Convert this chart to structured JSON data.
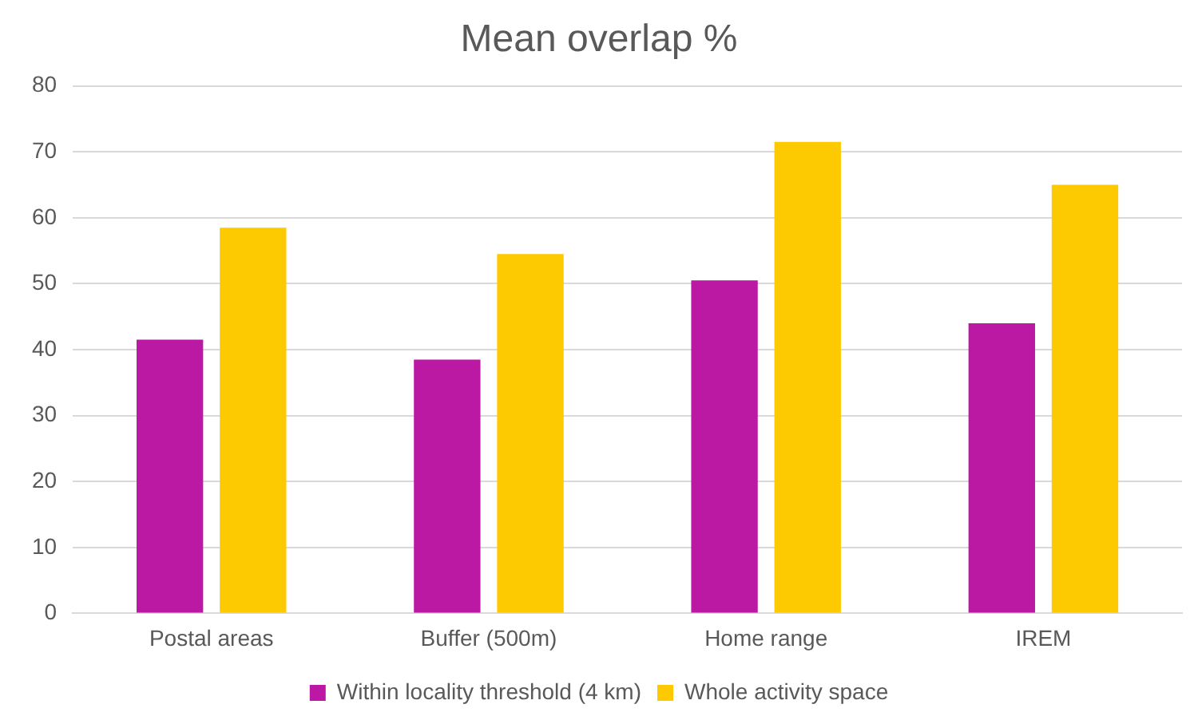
{
  "chart_data": {
    "type": "bar",
    "title": "Mean overlap %",
    "categories": [
      "Postal areas",
      "Buffer (500m)",
      "Home range",
      "IREM"
    ],
    "series": [
      {
        "name": "Within locality threshold (4 km)",
        "color": "#bb19a3",
        "values": [
          41.5,
          38.5,
          50.5,
          44
        ]
      },
      {
        "name": "Whole activity space",
        "color": "#fdc900",
        "values": [
          58.5,
          54.5,
          71.5,
          65
        ]
      }
    ],
    "ylim": [
      0,
      80
    ],
    "yticks": [
      0,
      10,
      20,
      30,
      40,
      50,
      60,
      70,
      80
    ],
    "grid": "y",
    "legend": "bottom"
  }
}
